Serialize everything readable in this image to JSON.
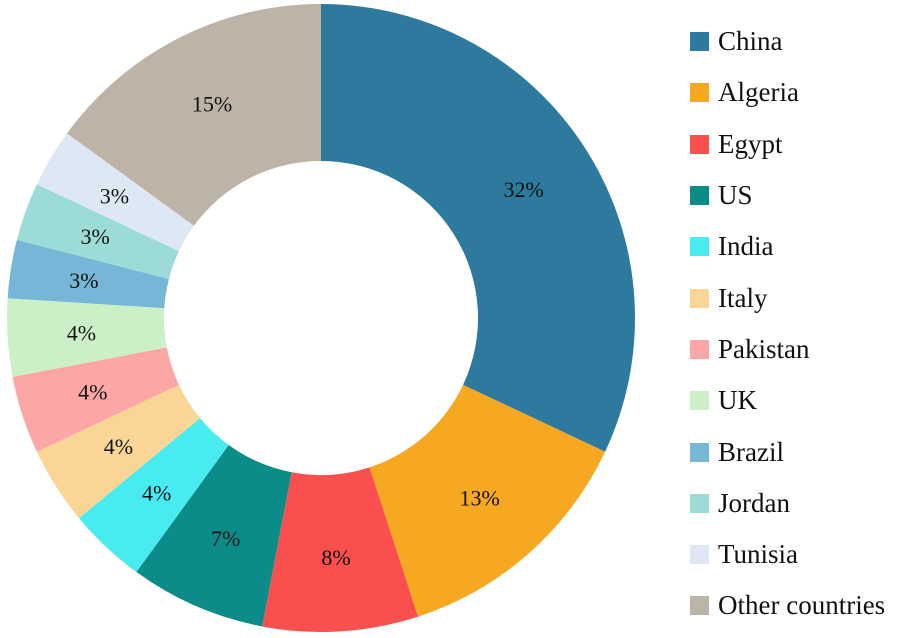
{
  "chart_data": {
    "type": "pie",
    "variant": "donut",
    "legend_position": "right",
    "categories": [
      "China",
      "Algeria",
      "Egypt",
      "US",
      "India",
      "Italy",
      "Pakistan",
      "UK",
      "Brazil",
      "Jordan",
      "Tunisia",
      "Other countries"
    ],
    "values": [
      32,
      13,
      8,
      7,
      4,
      4,
      4,
      4,
      3,
      3,
      3,
      15
    ],
    "labels": [
      "32%",
      "13%",
      "8%",
      "7%",
      "4%",
      "4%",
      "4%",
      "4%",
      "3%",
      "3%",
      "3%",
      "15%"
    ],
    "colors": [
      "#2E7A9F",
      "#F6A821",
      "#FA4F4F",
      "#0B8C89",
      "#48EBF0",
      "#FAD595",
      "#FCA6A6",
      "#CBF0C8",
      "#76B6D7",
      "#9CDCD6",
      "#DEE8F4",
      "#BDB3A6"
    ],
    "start_angle_deg": 0,
    "direction": "clockwise"
  }
}
